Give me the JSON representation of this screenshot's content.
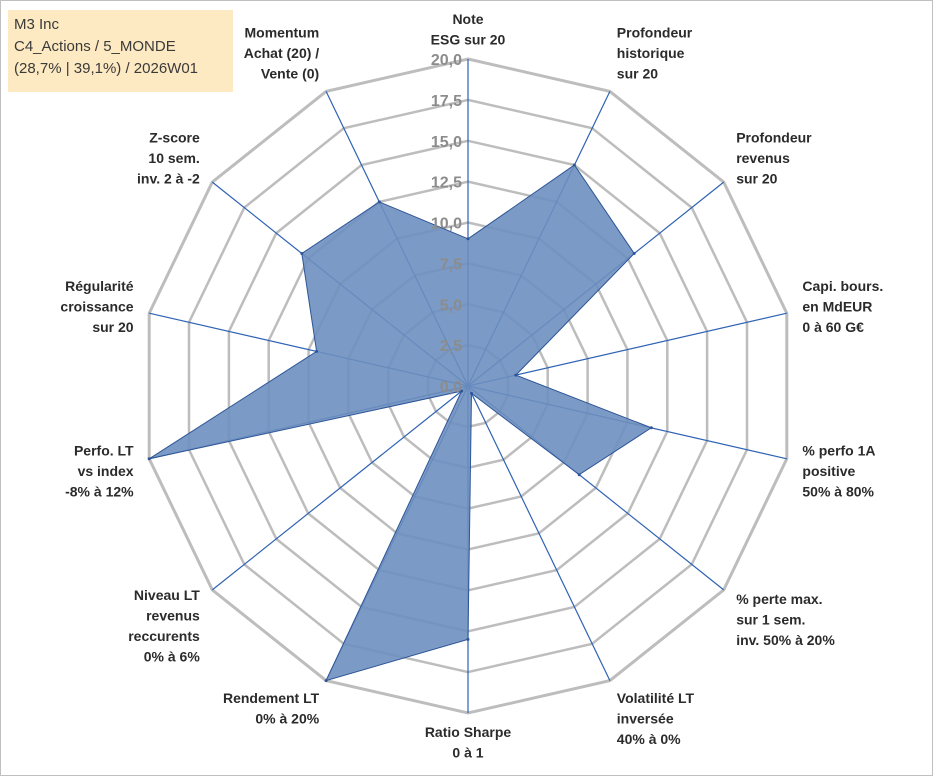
{
  "info": {
    "line1": "M3 Inc",
    "line2": "C4_Actions / 5_MONDE",
    "line3": "(28,7% | 39,1%) / 2026W01"
  },
  "colors": {
    "fill": "#6d8fbf",
    "stroke": "#2e5597",
    "spoke": "#2e62b4",
    "grid": "#bdbdbd",
    "infobox": "#fde9c2"
  },
  "chart_data": {
    "type": "radar",
    "rlim": [
      0,
      20
    ],
    "ticks": [
      "0,0",
      "2,5",
      "5,0",
      "7,5",
      "10,0",
      "12,5",
      "15,0",
      "17,5",
      "20,0"
    ],
    "axes": [
      {
        "lines": [
          "Note",
          "ESG sur 20"
        ]
      },
      {
        "lines": [
          "Profondeur",
          "historique",
          "sur 20"
        ]
      },
      {
        "lines": [
          "Profondeur",
          "revenus",
          "sur 20"
        ]
      },
      {
        "lines": [
          "Capi. bours.",
          "en MdEUR",
          "0 à 60 G€"
        ]
      },
      {
        "lines": [
          "% perfo 1A",
          "positive",
          "50% à 80%"
        ]
      },
      {
        "lines": [
          "% perte max.",
          "sur 1 sem.",
          "inv. 50% à 20%"
        ]
      },
      {
        "lines": [
          "Volatilité LT",
          "inversée",
          "40% à 0%"
        ]
      },
      {
        "lines": [
          "Ratio Sharpe",
          "0 à 1"
        ]
      },
      {
        "lines": [
          "Rendement LT",
          "0% à 20%"
        ]
      },
      {
        "lines": [
          "Niveau LT",
          "revenus",
          "reccurents",
          "0% à 6%"
        ]
      },
      {
        "lines": [
          "Perfo. LT",
          "vs index",
          "-8% à 12%"
        ]
      },
      {
        "lines": [
          "Régularité",
          "croissance",
          "sur 20"
        ]
      },
      {
        "lines": [
          "Z-score",
          "10 sem.",
          "inv. 2 à -2"
        ]
      },
      {
        "lines": [
          "Momentum",
          "Achat (20) /",
          "Vente (0)"
        ]
      }
    ],
    "series": [
      {
        "values": [
          9.0,
          15.0,
          13.0,
          3.0,
          11.5,
          8.7,
          0.5,
          15.5,
          20.0,
          0.5,
          20.0,
          9.5,
          13.0,
          12.5
        ]
      }
    ]
  }
}
